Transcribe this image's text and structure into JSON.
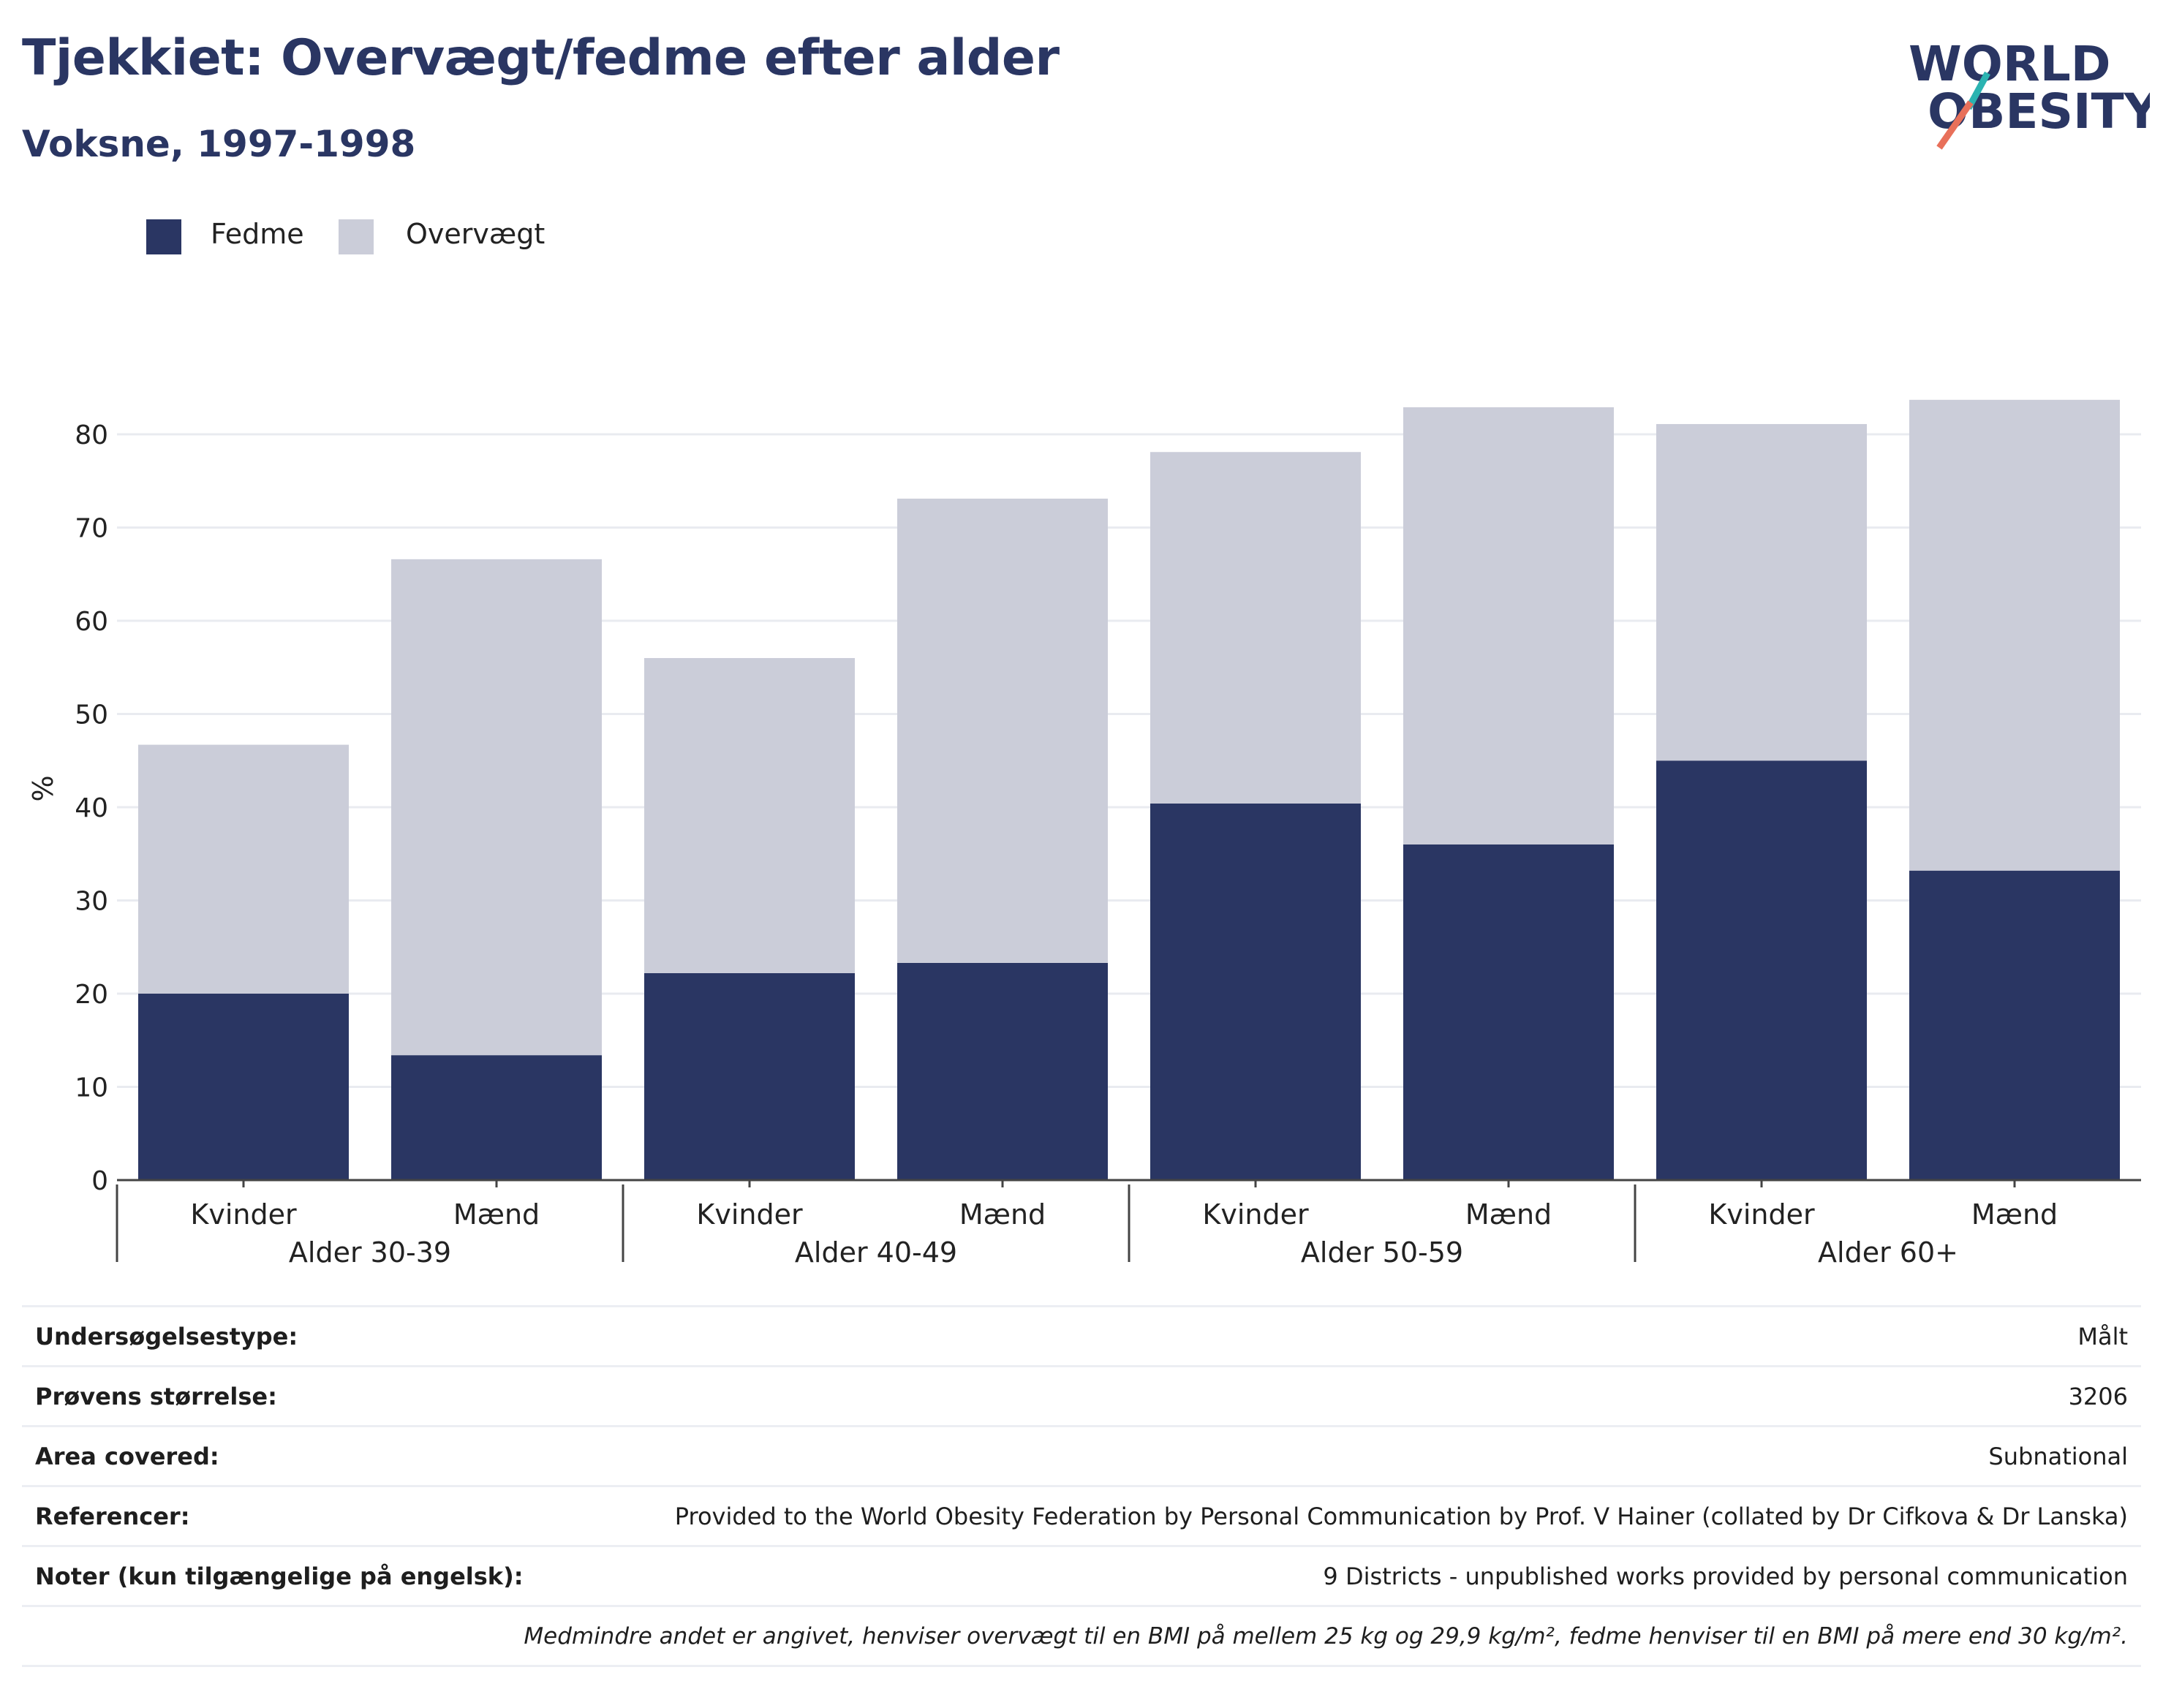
{
  "header": {
    "title": "Tjekkiet: Overvægt/fedme efter alder",
    "subtitle": "Voksne, 1997-1998"
  },
  "logo": {
    "line1": "WORLD",
    "line2": "OBESITY",
    "accent_colors": [
      "#2bb3b1",
      "#e8705a"
    ]
  },
  "legend": {
    "items": [
      {
        "label": "Fedme",
        "color": "#2a3663"
      },
      {
        "label": "Overvægt",
        "color": "#cbcdd9"
      }
    ]
  },
  "chart_data": {
    "type": "bar",
    "stacked": true,
    "ylabel": "%",
    "ylim": [
      0,
      84
    ],
    "yticks": [
      0,
      10,
      20,
      30,
      40,
      50,
      60,
      70,
      80
    ],
    "grid": true,
    "legend_position": "top-left",
    "categories": [
      "Kvinder",
      "Mænd",
      "Kvinder",
      "Mænd",
      "Kvinder",
      "Mænd",
      "Kvinder",
      "Mænd"
    ],
    "groups": [
      {
        "label": "Alder 30-39",
        "span": 2
      },
      {
        "label": "Alder 40-49",
        "span": 2
      },
      {
        "label": "Alder 50-59",
        "span": 2
      },
      {
        "label": "Alder 60+",
        "span": 2
      }
    ],
    "series": [
      {
        "name": "Fedme",
        "color": "#2a3663",
        "values": [
          20.0,
          13.4,
          22.2,
          23.3,
          40.4,
          36.0,
          45.0,
          33.2
        ]
      },
      {
        "name": "Overvægt",
        "color": "#cbcdd9",
        "values": [
          26.7,
          53.2,
          33.8,
          49.8,
          37.7,
          46.9,
          36.1,
          50.5
        ]
      }
    ]
  },
  "info_table": {
    "rows": [
      {
        "label": "Undersøgelsestype:",
        "value": "Målt"
      },
      {
        "label": "Prøvens størrelse:",
        "value": "3206"
      },
      {
        "label": "Area covered:",
        "value": "Subnational"
      },
      {
        "label": "Referencer:",
        "value": "Provided to the World Obesity Federation by Personal Communication by Prof. V Hainer (collated by Dr Cifkova & Dr Lanska)"
      },
      {
        "label": "Noter (kun tilgængelige på engelsk):",
        "value": "9 Districts - unpublished works provided by personal communication"
      }
    ],
    "footnote": "Medmindre andet er angivet, henviser overvægt til en BMI på mellem 25 kg og 29,9 kg/m², fedme henviser til en BMI på mere end 30 kg/m²."
  }
}
